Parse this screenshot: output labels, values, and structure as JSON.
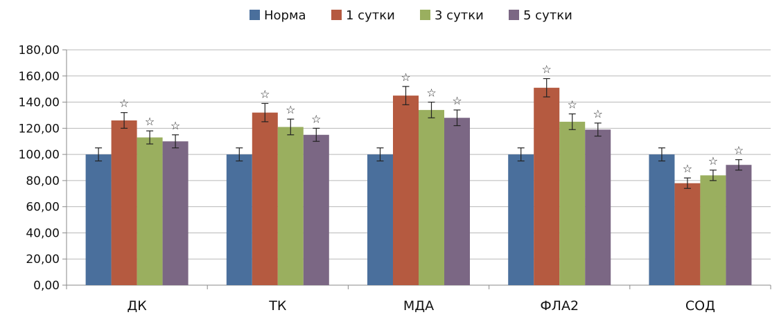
{
  "chart_data": {
    "type": "bar",
    "title": "",
    "xlabel": "",
    "ylabel": "",
    "categories": [
      "ДК",
      "ТК",
      "МДА",
      "ФЛА2",
      "СОД"
    ],
    "ylim": [
      0,
      180
    ],
    "y_ticks": [
      "0,00",
      "20,00",
      "40,00",
      "60,00",
      "80,00",
      "100,00",
      "120,00",
      "140,00",
      "160,00",
      "180,00"
    ],
    "y_tick_values": [
      0,
      20,
      40,
      60,
      80,
      100,
      120,
      140,
      160,
      180
    ],
    "grid": true,
    "legend_position": "top-center",
    "significance_marker": "☆",
    "series": [
      {
        "name": "Норма",
        "color": "#4a6f9c",
        "values": [
          100,
          100,
          100,
          100,
          100
        ],
        "errors": [
          5,
          5,
          5,
          5,
          5
        ],
        "significant": [
          false,
          false,
          false,
          false,
          false
        ]
      },
      {
        "name": "1 сутки",
        "color": "#b55a40",
        "values": [
          126,
          132,
          145,
          151,
          78
        ],
        "errors": [
          6,
          7,
          7,
          7,
          4
        ],
        "significant": [
          true,
          true,
          true,
          true,
          true
        ]
      },
      {
        "name": "3 сутки",
        "color": "#9aaf5f",
        "values": [
          113,
          121,
          134,
          125,
          84
        ],
        "errors": [
          5,
          6,
          6,
          6,
          4
        ],
        "significant": [
          true,
          true,
          true,
          true,
          true
        ]
      },
      {
        "name": "5 сутки",
        "color": "#7b6784",
        "values": [
          110,
          115,
          128,
          119,
          92
        ],
        "errors": [
          5,
          5,
          6,
          5,
          4
        ],
        "significant": [
          true,
          true,
          true,
          true,
          true
        ]
      }
    ]
  }
}
